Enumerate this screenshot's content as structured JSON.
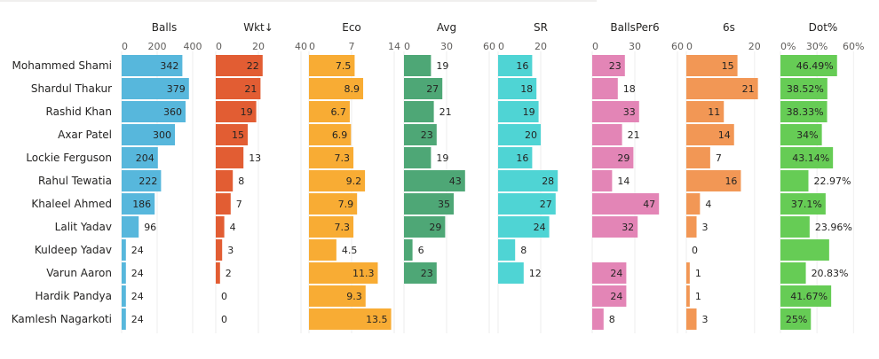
{
  "chart_data": {
    "type": "bar",
    "categories": [
      "Mohammed Shami",
      "Shardul Thakur",
      "Rashid Khan",
      "Axar Patel",
      "Lockie Ferguson",
      "Rahul Tewatia",
      "Khaleel Ahmed",
      "Lalit Yadav",
      "Kuldeep Yadav",
      "Varun Aaron",
      "Hardik Pandya",
      "Kamlesh Nagarkoti"
    ],
    "panels": [
      {
        "name": "Balls",
        "color": "#57b7dc",
        "xlim": [
          0,
          480
        ],
        "ticks": [
          0,
          200,
          400
        ],
        "tick_labels": [
          "0",
          "200",
          "400"
        ],
        "values": [
          342,
          379,
          360,
          300,
          204,
          222,
          186,
          96,
          24,
          24,
          24,
          24
        ],
        "labels": [
          "342",
          "379",
          "360",
          "300",
          "204",
          "222",
          "186",
          "96",
          "24",
          "24",
          "24",
          "24"
        ]
      },
      {
        "name": "Wkt↓",
        "color": "#e25d33",
        "xlim": [
          0,
          40
        ],
        "ticks": [
          0,
          20,
          40
        ],
        "tick_labels": [
          "0",
          "20",
          "40"
        ],
        "values": [
          22,
          21,
          19,
          15,
          13,
          8,
          7,
          4,
          3,
          2,
          0,
          0
        ],
        "labels": [
          "22",
          "21",
          "19",
          "15",
          "13",
          "8",
          "7",
          "4",
          "3",
          "2",
          "0",
          "0"
        ]
      },
      {
        "name": "Eco",
        "color": "#f8ac34",
        "xlim": [
          0,
          14
        ],
        "ticks": [
          0,
          7,
          14
        ],
        "tick_labels": [
          "0",
          "7",
          "14"
        ],
        "values": [
          7.5,
          8.9,
          6.7,
          6.9,
          7.3,
          9.2,
          7.9,
          7.3,
          4.5,
          11.3,
          9.3,
          13.5
        ],
        "labels": [
          "7.5",
          "8.9",
          "6.7",
          "6.9",
          "7.3",
          "9.2",
          "7.9",
          "7.3",
          "4.5",
          "11.3",
          "9.3",
          "13.5"
        ]
      },
      {
        "name": "Avg",
        "color": "#4ea776",
        "xlim": [
          0,
          60
        ],
        "ticks": [
          0,
          30,
          60
        ],
        "tick_labels": [
          "0",
          "30",
          "60"
        ],
        "values": [
          19,
          27,
          21,
          23,
          19,
          43,
          35,
          29,
          6,
          23,
          null,
          null
        ],
        "labels": [
          "19",
          "27",
          "21",
          "23",
          "19",
          "43",
          "35",
          "29",
          "6",
          "23",
          "",
          ""
        ]
      },
      {
        "name": "SR",
        "color": "#4fd4d4",
        "xlim": [
          0,
          40
        ],
        "ticks": [
          0,
          20
        ],
        "tick_labels": [
          "0",
          "20"
        ],
        "values": [
          16,
          18,
          19,
          20,
          16,
          28,
          27,
          24,
          8,
          12,
          null,
          null
        ],
        "labels": [
          "16",
          "18",
          "19",
          "20",
          "16",
          "28",
          "27",
          "24",
          "8",
          "12",
          "",
          ""
        ]
      },
      {
        "name": "BallsPer6",
        "color": "#e385b6",
        "xlim": [
          0,
          60
        ],
        "ticks": [
          0,
          30,
          60
        ],
        "tick_labels": [
          "0",
          "30",
          "60"
        ],
        "values": [
          23,
          18,
          33,
          21,
          29,
          14,
          47,
          32,
          null,
          24,
          24,
          8
        ],
        "labels": [
          "23",
          "18",
          "33",
          "21",
          "29",
          "14",
          "47",
          "32",
          "",
          "24",
          "24",
          "8"
        ]
      },
      {
        "name": "6s",
        "color": "#f29755",
        "xlim": [
          0,
          25
        ],
        "ticks": [
          0,
          20
        ],
        "tick_labels": [
          "0",
          "20"
        ],
        "values": [
          15,
          21,
          11,
          14,
          7,
          16,
          4,
          3,
          0,
          1,
          1,
          3
        ],
        "labels": [
          "15",
          "21",
          "11",
          "14",
          "7",
          "16",
          "4",
          "3",
          "0",
          "1",
          "1",
          "3"
        ]
      },
      {
        "name": "Dot%",
        "color": "#66cc55",
        "xlim": [
          0,
          0.7
        ],
        "ticks": [
          0,
          0.3,
          0.6
        ],
        "tick_labels": [
          "0%",
          "30%",
          "60%"
        ],
        "values": [
          0.4649,
          0.3852,
          0.3833,
          0.34,
          0.4314,
          0.2297,
          0.371,
          0.2396,
          0.4,
          0.2083,
          0.4167,
          0.25
        ],
        "labels": [
          "46.49%",
          "38.52%",
          "38.33%",
          "34%",
          "43.14%",
          "22.97%",
          "37.1%",
          "23.96%",
          "",
          "20.83%",
          "41.67%",
          "25%"
        ]
      }
    ]
  }
}
